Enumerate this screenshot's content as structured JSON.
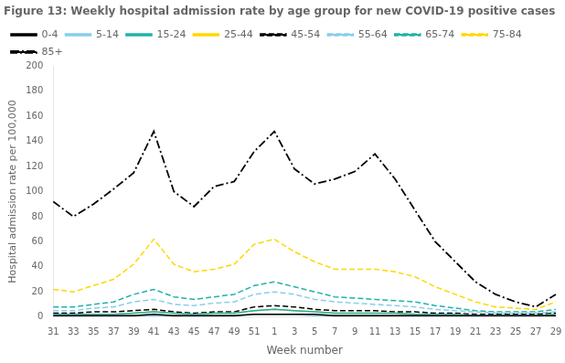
{
  "chart_data": {
    "type": "line",
    "title": "Figure 13: Weekly hospital admission rate by age group for new COVID-19 positive cases",
    "xlabel": "Week number",
    "ylabel": "Hospital admission rate per 100,000",
    "categories": [
      "31",
      "33",
      "35",
      "37",
      "39",
      "41",
      "43",
      "45",
      "47",
      "49",
      "51",
      "1",
      "3",
      "5",
      "7",
      "9",
      "11",
      "13",
      "15",
      "17",
      "19",
      "21",
      "23",
      "25",
      "27",
      "29"
    ],
    "series": [
      {
        "name": "0-4",
        "color": "#000000",
        "line_style": "solid",
        "values": [
          1,
          1,
          1,
          1,
          1,
          2,
          1,
          1,
          1,
          1,
          2,
          2,
          2,
          2,
          1,
          1,
          1,
          1,
          1,
          1,
          1,
          1,
          1,
          1,
          1,
          1
        ]
      },
      {
        "name": "5-14",
        "color": "#87ceeb",
        "line_style": "solid",
        "values": [
          1,
          1,
          1,
          1,
          1,
          1,
          1,
          1,
          1,
          1,
          2,
          2,
          2,
          1,
          1,
          1,
          1,
          1,
          1,
          1,
          1,
          1,
          1,
          1,
          1,
          1
        ]
      },
      {
        "name": "15-24",
        "color": "#20b2aa",
        "line_style": "solid",
        "values": [
          2,
          2,
          2,
          2,
          3,
          4,
          3,
          2,
          3,
          3,
          5,
          6,
          5,
          4,
          3,
          3,
          3,
          3,
          2,
          2,
          2,
          1,
          1,
          1,
          1,
          2
        ]
      },
      {
        "name": "25-44",
        "color": "#ffd700",
        "line_style": "solid",
        "values": [
          2,
          2,
          2,
          2,
          3,
          4,
          3,
          2,
          3,
          3,
          5,
          6,
          5,
          4,
          3,
          3,
          3,
          3,
          2,
          2,
          2,
          1,
          1,
          1,
          1,
          2
        ]
      },
      {
        "name": "45-54",
        "color": "#000000",
        "line_style": "dashed",
        "values": [
          3,
          3,
          4,
          4,
          5,
          6,
          4,
          3,
          4,
          4,
          8,
          9,
          8,
          6,
          5,
          5,
          5,
          4,
          4,
          3,
          3,
          2,
          2,
          2,
          2,
          3
        ]
      },
      {
        "name": "55-64",
        "color": "#87ceeb",
        "line_style": "dashed",
        "values": [
          5,
          5,
          7,
          8,
          12,
          14,
          10,
          9,
          11,
          12,
          18,
          20,
          18,
          14,
          12,
          11,
          10,
          9,
          8,
          6,
          5,
          4,
          3,
          3,
          3,
          4
        ]
      },
      {
        "name": "65-74",
        "color": "#20b2aa",
        "line_style": "dashed",
        "values": [
          8,
          8,
          10,
          12,
          18,
          22,
          16,
          14,
          16,
          18,
          25,
          28,
          24,
          20,
          16,
          15,
          14,
          13,
          12,
          9,
          7,
          5,
          4,
          4,
          4,
          6
        ]
      },
      {
        "name": "75-84",
        "color": "#ffd700",
        "line_style": "dashed",
        "values": [
          22,
          20,
          25,
          30,
          42,
          62,
          42,
          36,
          38,
          42,
          58,
          62,
          52,
          44,
          38,
          38,
          38,
          36,
          32,
          24,
          18,
          12,
          8,
          7,
          6,
          12
        ]
      },
      {
        "name": "85+",
        "color": "#000000",
        "line_style": "dashdot",
        "values": [
          92,
          80,
          90,
          102,
          115,
          148,
          100,
          88,
          104,
          108,
          132,
          148,
          118,
          106,
          110,
          116,
          130,
          110,
          85,
          60,
          44,
          28,
          18,
          12,
          8,
          18
        ]
      }
    ],
    "ylim": [
      0,
      200
    ],
    "yticks": [
      0,
      20,
      40,
      60,
      80,
      100,
      120,
      140,
      160,
      180,
      200
    ],
    "grid": false,
    "legend": "upper left"
  }
}
